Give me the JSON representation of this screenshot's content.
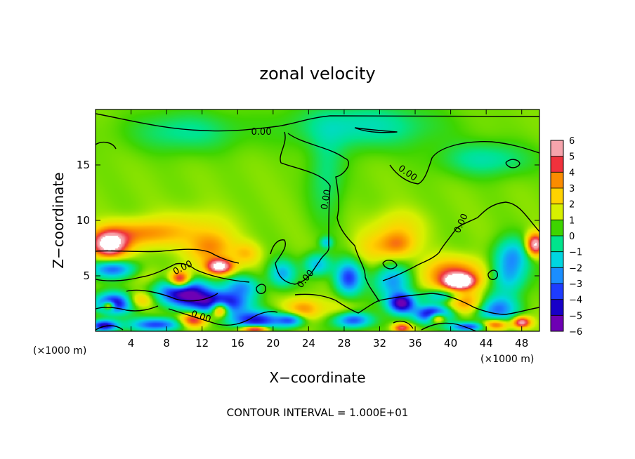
{
  "chart_data": {
    "type": "heatmap",
    "title": "zonal velocity",
    "xlabel": "X−coordinate",
    "ylabel": "Z−coordinate",
    "x_unit_left": "(×1000 m)",
    "x_unit_right": "(×1000 m)",
    "footer": "CONTOUR INTERVAL = 1.000E+01",
    "xlim": [
      0,
      50
    ],
    "ylim": [
      0,
      20
    ],
    "x_ticks": [
      4,
      8,
      12,
      16,
      20,
      24,
      28,
      32,
      36,
      40,
      44,
      48
    ],
    "y_ticks": [
      5,
      10,
      15
    ],
    "contour_level": 0,
    "contour_labels": [
      "0.00",
      "0.00",
      "0.00",
      "0.00",
      "0.00",
      "0.00",
      "0.00"
    ],
    "colorbar": {
      "min": -6,
      "max": 6,
      "tick_labels": [
        "6",
        "5",
        "4",
        "3",
        "2",
        "1",
        "0",
        "−1",
        "−2",
        "−3",
        "−4",
        "−5",
        "−6"
      ],
      "colors": [
        "#f6a4ac",
        "#f0323c",
        "#fb8c00",
        "#ffd200",
        "#d7f000",
        "#3ed500",
        "#00e48c",
        "#00d6e0",
        "#1a8eff",
        "#1e3cff",
        "#1800c8",
        "#6e00b4"
      ]
    },
    "background_value": 0.9,
    "features": [
      {
        "x": 1.5,
        "z": 7.8,
        "u": 6.8,
        "sx": 2.0,
        "sz": 1.2
      },
      {
        "x": 5.0,
        "z": 8.8,
        "u": 3.5,
        "sx": 4.5,
        "sz": 1.2
      },
      {
        "x": 11.0,
        "z": 9.5,
        "u": 1.8,
        "sx": 4.0,
        "sz": 1.6
      },
      {
        "x": 2.0,
        "z": 5.6,
        "u": -3.0,
        "sx": 2.5,
        "sz": 0.8
      },
      {
        "x": 6.0,
        "z": 5.0,
        "u": 1.5,
        "sx": 2.0,
        "sz": 1.0
      },
      {
        "x": 2.0,
        "z": 2.5,
        "u": -5.0,
        "sx": 2.0,
        "sz": 0.9
      },
      {
        "x": 1.5,
        "z": 2.3,
        "u": 6.5,
        "sx": 0.7,
        "sz": 0.4
      },
      {
        "x": 5.0,
        "z": 2.8,
        "u": 3.0,
        "sx": 1.5,
        "sz": 0.7
      },
      {
        "x": 1.0,
        "z": 0.5,
        "u": -5.0,
        "sx": 1.5,
        "sz": 0.5
      },
      {
        "x": 7.0,
        "z": 0.6,
        "u": -3.5,
        "sx": 3.0,
        "sz": 0.6
      },
      {
        "x": 10.0,
        "z": 3.5,
        "u": -5.5,
        "sx": 3.0,
        "sz": 1.2
      },
      {
        "x": 9.5,
        "z": 4.6,
        "u": 6.8,
        "sx": 1.2,
        "sz": 0.8
      },
      {
        "x": 13.0,
        "z": 7.5,
        "u": 3.5,
        "sx": 2.5,
        "sz": 1.5
      },
      {
        "x": 14.0,
        "z": 5.8,
        "u": 6.5,
        "sx": 1.5,
        "sz": 0.7
      },
      {
        "x": 16.5,
        "z": 4.0,
        "u": -2.0,
        "sx": 2.0,
        "sz": 1.0
      },
      {
        "x": 17.0,
        "z": 7.0,
        "u": 2.5,
        "sx": 1.5,
        "sz": 1.0
      },
      {
        "x": 14.0,
        "z": 2.5,
        "u": -5.0,
        "sx": 3.0,
        "sz": 1.0
      },
      {
        "x": 14.0,
        "z": 2.0,
        "u": 6.8,
        "sx": 1.0,
        "sz": 0.7
      },
      {
        "x": 11.0,
        "z": 1.0,
        "u": 5.5,
        "sx": 1.5,
        "sz": 0.7
      },
      {
        "x": 18.0,
        "z": 1.0,
        "u": -4.0,
        "sx": 3.0,
        "sz": 0.8
      },
      {
        "x": 18.0,
        "z": 0.2,
        "u": 6.5,
        "sx": 1.5,
        "sz": 0.3
      },
      {
        "x": 21.0,
        "z": 5.2,
        "u": -2.0,
        "sx": 1.5,
        "sz": 1.2
      },
      {
        "x": 23.5,
        "z": 2.0,
        "u": 3.5,
        "sx": 2.0,
        "sz": 1.0
      },
      {
        "x": 22.0,
        "z": 1.0,
        "u": -3.0,
        "sx": 1.5,
        "sz": 0.6
      },
      {
        "x": 25.0,
        "z": 6.0,
        "u": -2.0,
        "sx": 1.5,
        "sz": 1.0
      },
      {
        "x": 26.0,
        "z": 8.0,
        "u": -1.5,
        "sx": 0.7,
        "sz": 0.5
      },
      {
        "x": 28.5,
        "z": 4.8,
        "u": -3.5,
        "sx": 1.5,
        "sz": 1.5
      },
      {
        "x": 27.5,
        "z": 2.0,
        "u": 1.5,
        "sx": 2.0,
        "sz": 1.0
      },
      {
        "x": 29.0,
        "z": 1.0,
        "u": -3.5,
        "sx": 2.0,
        "sz": 0.7
      },
      {
        "x": 31.0,
        "z": 7.5,
        "u": 2.0,
        "sx": 2.0,
        "sz": 1.5
      },
      {
        "x": 34.0,
        "z": 7.8,
        "u": 3.5,
        "sx": 2.0,
        "sz": 1.2
      },
      {
        "x": 34.0,
        "z": 9.5,
        "u": 2.0,
        "sx": 3.0,
        "sz": 1.5
      },
      {
        "x": 33.5,
        "z": 4.5,
        "u": -2.5,
        "sx": 2.0,
        "sz": 1.5
      },
      {
        "x": 34.5,
        "z": 2.5,
        "u": -5.5,
        "sx": 1.5,
        "sz": 0.9
      },
      {
        "x": 34.5,
        "z": 0.3,
        "u": 5.0,
        "sx": 1.0,
        "sz": 0.4
      },
      {
        "x": 38.0,
        "z": 1.5,
        "u": -5.5,
        "sx": 2.0,
        "sz": 0.8
      },
      {
        "x": 38.5,
        "z": 1.2,
        "u": 6.8,
        "sx": 1.0,
        "sz": 0.5
      },
      {
        "x": 40.5,
        "z": 5.0,
        "u": 4.5,
        "sx": 3.5,
        "sz": 1.5
      },
      {
        "x": 41.0,
        "z": 4.5,
        "u": 6.8,
        "sx": 1.5,
        "sz": 0.6
      },
      {
        "x": 42.0,
        "z": 2.5,
        "u": 3.5,
        "sx": 2.5,
        "sz": 1.0
      },
      {
        "x": 39.0,
        "z": 3.2,
        "u": -2.0,
        "sx": 2.0,
        "sz": 0.6
      },
      {
        "x": 45.0,
        "z": 2.0,
        "u": -3.0,
        "sx": 2.5,
        "sz": 1.2
      },
      {
        "x": 46.5,
        "z": 5.0,
        "u": -2.0,
        "sx": 2.0,
        "sz": 1.8
      },
      {
        "x": 47.0,
        "z": 7.0,
        "u": -1.5,
        "sx": 2.0,
        "sz": 1.5
      },
      {
        "x": 49.5,
        "z": 7.8,
        "u": 6.5,
        "sx": 1.0,
        "sz": 1.0
      },
      {
        "x": 48.0,
        "z": 0.8,
        "u": 6.0,
        "sx": 1.0,
        "sz": 0.5
      },
      {
        "x": 42.0,
        "z": 0.4,
        "u": -3.5,
        "sx": 2.0,
        "sz": 0.4
      },
      {
        "x": 45.0,
        "z": 0.6,
        "u": 5.0,
        "sx": 1.5,
        "sz": 0.5
      },
      {
        "x": 30.0,
        "z": 18.5,
        "u": -1.0,
        "sx": 8.0,
        "sz": 2.0
      },
      {
        "x": 10.0,
        "z": 18.0,
        "u": -0.6,
        "sx": 6.0,
        "sz": 1.8
      },
      {
        "x": 44.0,
        "z": 15.5,
        "u": -0.8,
        "sx": 5.0,
        "sz": 1.5
      },
      {
        "x": 26.0,
        "z": 14.0,
        "u": -0.4,
        "sx": 2.0,
        "sz": 4.0
      }
    ]
  }
}
